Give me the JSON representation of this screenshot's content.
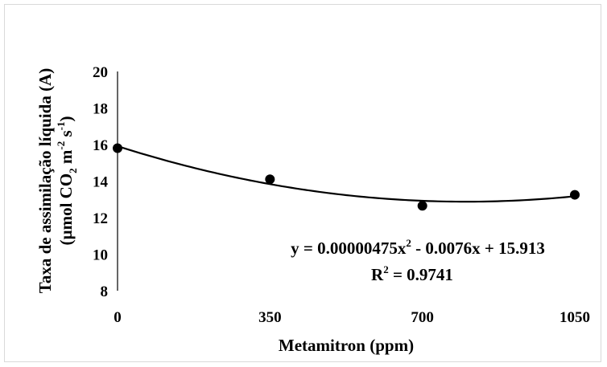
{
  "chart_data": {
    "type": "scatter",
    "xlabel": "Metamitron (ppm)",
    "ylabel_line1": "Taxa de assimilação líquida (A)",
    "ylabel_line2_parts": [
      "(µmol CO",
      "2",
      "  m",
      "-2",
      " s",
      "-1",
      ")"
    ],
    "x": [
      0,
      350,
      700,
      1050
    ],
    "y": [
      15.8,
      14.1,
      12.65,
      13.25
    ],
    "xticks": [
      "0",
      "350",
      "700",
      "1050"
    ],
    "yticks": [
      "8",
      "10",
      "12",
      "14",
      "16",
      "18",
      "20"
    ],
    "ylim": [
      8,
      20
    ],
    "xlim": [
      0,
      1050
    ],
    "trendline": {
      "type": "polynomial",
      "a": 4.75e-06,
      "b": -0.0076,
      "c": 15.913
    },
    "equation_parts": [
      "y = 0.00000475x",
      "2",
      " - 0.0076x + 15.913"
    ],
    "r2_parts": [
      "R",
      "2",
      " = 0.9741"
    ],
    "grid": false,
    "marker_color": "#000000",
    "line_color": "#000000"
  }
}
